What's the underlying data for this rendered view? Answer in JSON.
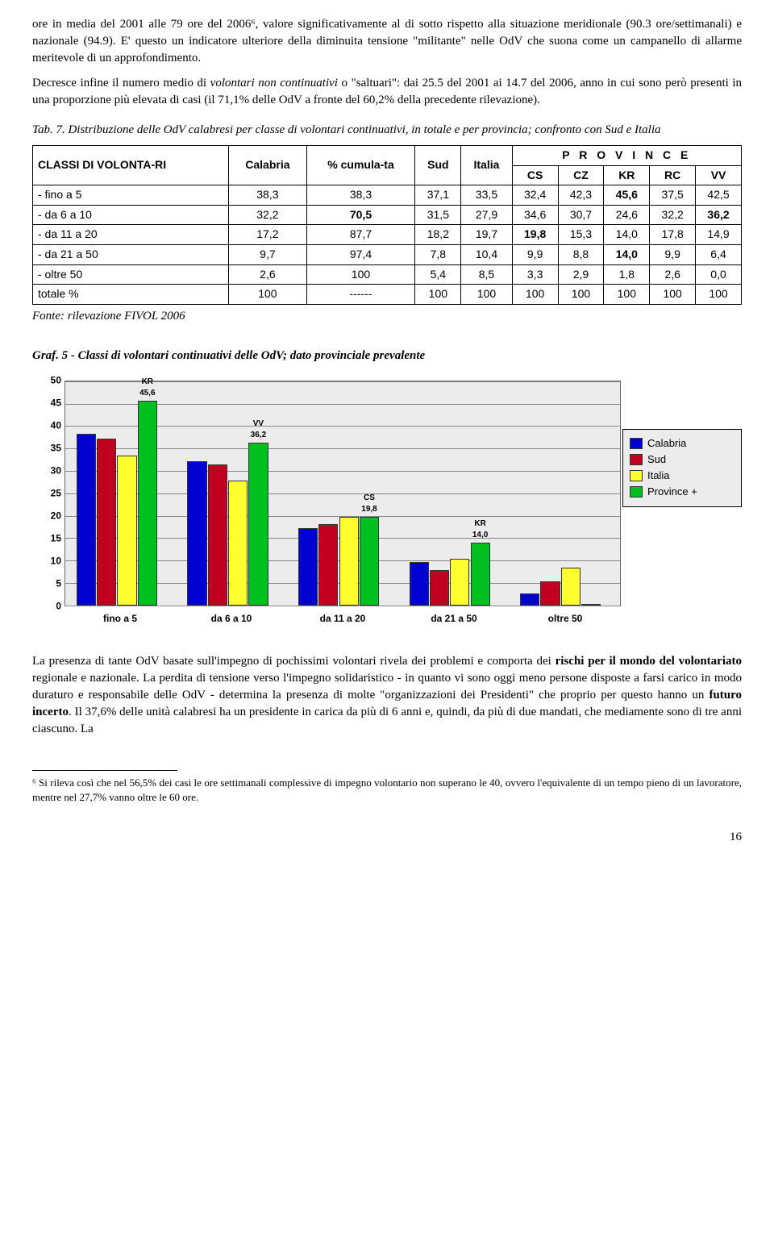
{
  "paragraphs": {
    "p1": "ore in media del 2001 alle 79 ore del 2006⁶, valore significativamente al di sotto rispetto alla situazione meridionale (90.3 ore/settimanali) e nazionale (94.9). E' questo un indicatore ulteriore della diminuita tensione \"militante\" nelle OdV che suona come un campanello di allarme meritevole di un approfondimento.",
    "p2_a": "Decresce infine il numero medio di ",
    "p2_b": "volontari non continuativi",
    "p2_c": " o \"saltuari\": dai 25.5 del 2001 ai 14.7 del 2006, anno in cui sono però presenti in una proporzione più elevata di casi (il 71,1% delle OdV a fronte del 60,2% della precedente rilevazione).",
    "p3_a": "La presenza di tante OdV basate sull'impegno di pochissimi volontari rivela dei problemi e comporta dei ",
    "p3_b": "rischi per il mondo del volontariato",
    "p3_c": " regionale e nazionale. La perdita di tensione verso l'impegno solidaristico - in quanto vi sono oggi meno persone disposte a farsi carico in modo duraturo e responsabile delle OdV - determina la presenza di molte \"organizzazioni dei Presidenti\" che proprio per questo hanno un ",
    "p3_d": "futuro incerto",
    "p3_e": ". Il 37,6% delle unità calabresi ha un presidente in carica da più di 6 anni e, quindi, da più di due mandati, che mediamente sono di tre anni ciascuno. La"
  },
  "table_caption": "Tab. 7. Distribuzione delle OdV calabresi per classe di volontari continuativi, in totale e per provincia; confronto con Sud e Italia",
  "table": {
    "headers": {
      "c0": "CLASSI DI VOLONTA-RI",
      "c1": "Calabria",
      "c2": "% cumula-ta",
      "c3": "Sud",
      "c4": "Italia",
      "province_span": "P   R   O   V   I   N   C   E",
      "p1": "CS",
      "p2": "CZ",
      "p3": "KR",
      "p4": "RC",
      "p5": "VV"
    },
    "rows": [
      {
        "label": "- fino a 5",
        "cal": "38,3",
        "cum": "38,3",
        "sud": "37,1",
        "ita": "33,5",
        "cs": "32,4",
        "cz": "42,3",
        "kr": "45,6",
        "rc": "37,5",
        "vv": "42,5",
        "bold_idx": 7
      },
      {
        "label": "- da 6 a 10",
        "cal": "32,2",
        "cum": "70,5",
        "sud": "31,5",
        "ita": "27,9",
        "cs": "34,6",
        "cz": "30,7",
        "kr": "24,6",
        "rc": "32,2",
        "vv": "36,2",
        "bold_idx": 9,
        "bold_idx2": 2
      },
      {
        "label": "- da 11 a 20",
        "cal": "17,2",
        "cum": "87,7",
        "sud": "18,2",
        "ita": "19,7",
        "cs": "19,8",
        "cz": "15,3",
        "kr": "14,0",
        "rc": "17,8",
        "vv": "14,9",
        "bold_idx": 5
      },
      {
        "label": "- da 21 a  50",
        "cal": "9,7",
        "cum": "97,4",
        "sud": "7,8",
        "ita": "10,4",
        "cs": "9,9",
        "cz": "8,8",
        "kr": "14,0",
        "rc": "9,9",
        "vv": "6,4",
        "bold_idx": 7
      },
      {
        "label": "- oltre 50",
        "cal": "2,6",
        "cum": "100",
        "sud": "5,4",
        "ita": "8,5",
        "cs": "3,3",
        "cz": "2,9",
        "kr": "1,8",
        "rc": "2,6",
        "vv": "0,0"
      },
      {
        "label": "totale %",
        "cal": "100",
        "cum": "------",
        "sud": "100",
        "ita": "100",
        "cs": "100",
        "cz": "100",
        "kr": "100",
        "rc": "100",
        "vv": "100"
      }
    ],
    "source": "Fonte: rilevazione FIVOL 2006"
  },
  "chart": {
    "title": "Graf. 5 - Classi di volontari continuativi delle OdV; dato provinciale prevalente",
    "ylim": [
      0,
      50
    ],
    "ytick_step": 5,
    "categories": [
      "fino a 5",
      "da 6 a 10",
      "da 11 a 20",
      "da 21 a  50",
      "oltre 50"
    ],
    "series": [
      {
        "name": "Calabria",
        "color": "#0000d0",
        "values": [
          38.3,
          32.2,
          17.2,
          9.7,
          2.6
        ]
      },
      {
        "name": "Sud",
        "color": "#c00020",
        "values": [
          37.1,
          31.5,
          18.2,
          7.8,
          5.4
        ]
      },
      {
        "name": "Italia",
        "color": "#ffff30",
        "values": [
          33.5,
          27.9,
          19.7,
          10.4,
          8.5
        ]
      },
      {
        "name": "Province +",
        "color": "#00c020",
        "values": [
          45.6,
          36.2,
          19.8,
          14.0,
          0.0
        ]
      }
    ],
    "prov_labels": [
      {
        "cat": 0,
        "text": "KR",
        "value": "45,6"
      },
      {
        "cat": 1,
        "text": "VV",
        "value": "36,2"
      },
      {
        "cat": 2,
        "text": "CS",
        "value": "19,8"
      },
      {
        "cat": 3,
        "text": "KR",
        "value": "14,0"
      }
    ],
    "background": "#ececec",
    "grid_color": "#888888"
  },
  "footnote": "⁶ Si rileva così che nel 56,5% dei casi le ore settimanali complessive di impegno volontario non superano le 40, ovvero l'equivalente di un tempo pieno di un lavoratore, mentre nel 27,7% vanno oltre le 60 ore.",
  "page_number": "16"
}
